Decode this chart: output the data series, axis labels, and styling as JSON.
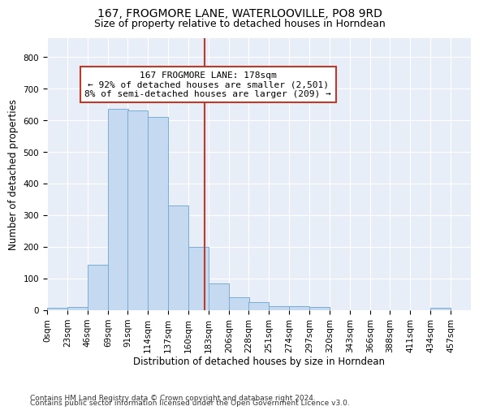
{
  "title": "167, FROGMORE LANE, WATERLOOVILLE, PO8 9RD",
  "subtitle": "Size of property relative to detached houses in Horndean",
  "xlabel": "Distribution of detached houses by size in Horndean",
  "ylabel": "Number of detached properties",
  "bar_color": "#c5d9f0",
  "bar_edge_color": "#7aadd4",
  "background_color": "#e8eef8",
  "grid_color": "#ffffff",
  "bins_left": [
    0,
    23,
    46,
    69,
    91,
    114,
    137,
    160,
    183,
    206,
    228,
    251,
    274,
    297,
    320,
    343,
    366,
    388,
    411,
    434
  ],
  "bin_width": 23,
  "bar_heights": [
    7,
    10,
    143,
    637,
    632,
    610,
    330,
    200,
    83,
    41,
    25,
    11,
    12,
    9,
    0,
    0,
    0,
    0,
    0,
    7
  ],
  "ylim": [
    0,
    860
  ],
  "yticks": [
    0,
    100,
    200,
    300,
    400,
    500,
    600,
    700,
    800
  ],
  "property_sqm": 178,
  "vline_color": "#c0392b",
  "annotation_line1": "167 FROGMORE LANE: 178sqm",
  "annotation_line2": "← 92% of detached houses are smaller (2,501)",
  "annotation_line3": "8% of semi-detached houses are larger (209) →",
  "annotation_box_color": "#c0392b",
  "tick_labels": [
    "0sqm",
    "23sqm",
    "46sqm",
    "69sqm",
    "91sqm",
    "114sqm",
    "137sqm",
    "160sqm",
    "183sqm",
    "206sqm",
    "228sqm",
    "251sqm",
    "274sqm",
    "297sqm",
    "320sqm",
    "343sqm",
    "366sqm",
    "388sqm",
    "411sqm",
    "434sqm",
    "457sqm"
  ],
  "footer_line1": "Contains HM Land Registry data © Crown copyright and database right 2024.",
  "footer_line2": "Contains public sector information licensed under the Open Government Licence v3.0.",
  "title_fontsize": 10,
  "subtitle_fontsize": 9,
  "axis_label_fontsize": 8.5,
  "tick_fontsize": 7.5,
  "annotation_fontsize": 8,
  "footer_fontsize": 6.5
}
